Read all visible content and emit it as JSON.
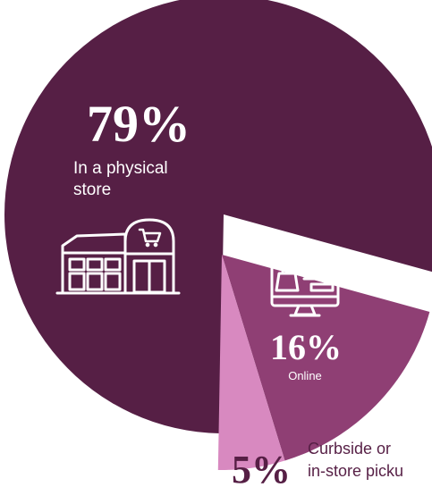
{
  "chart_data": {
    "type": "pie",
    "slices": [
      {
        "value": 79,
        "percent_label": "79%",
        "label_lines": [
          "In a physical",
          "store"
        ],
        "color": "#561f45",
        "icon": "store-icon"
      },
      {
        "value": 16,
        "percent_label": "16%",
        "label_lines": [
          "Online"
        ],
        "color": "#8f3f74",
        "icon": "monitor-shopping-icon"
      },
      {
        "value": 5,
        "percent_label": "5%",
        "label_lines": [
          "Curbside or",
          "in-store picku"
        ],
        "color": "#d889c0",
        "text_color": "#561f45"
      }
    ]
  }
}
